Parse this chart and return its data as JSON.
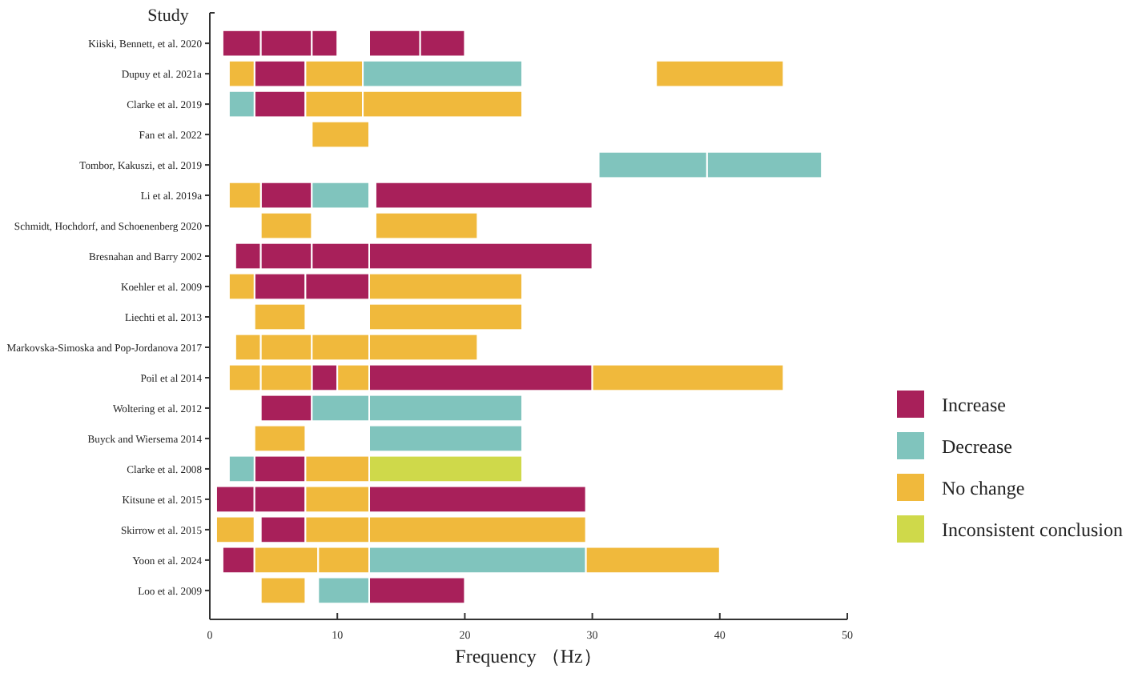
{
  "chart_data": {
    "type": "bar",
    "orientation": "horizontal",
    "ylabel": "Study",
    "xlabel": "Frequency （Hz）",
    "categories": [
      "Kiiski, Bennett, et al. 2020",
      "Dupuy et al. 2021a",
      "Clarke et al. 2019",
      "Fan et al. 2022",
      "Tombor, Kakuszi, et al. 2019",
      "Li et al. 2019a",
      "Schmidt, Hochdorf, and Schoenenberg 2020",
      "Bresnahan and Barry 2002",
      "Koehler et al. 2009",
      "Liechti et al. 2013",
      "Markovska-Simoska and Pop-Jordanova 2017",
      "Poil et al 2014",
      "Woltering et al. 2012",
      "Buyck and Wiersema 2014",
      "Clarke et al. 2008",
      "Kitsune et al. 2015",
      "Skirrow et al. 2015",
      "Yoon et al. 2024",
      "Loo et al. 2009"
    ],
    "xlim": [
      0,
      50
    ],
    "xticks": [
      0,
      10,
      20,
      30,
      40,
      50
    ],
    "legend": "right",
    "grid": false,
    "series": [
      {
        "name": "Increase",
        "color": "#a8205a",
        "base": [
          1,
          3.5,
          3.5,
          null,
          null,
          4,
          null,
          2,
          3.5,
          null,
          null,
          8,
          4,
          null,
          3.5,
          0.5,
          4,
          1,
          12.5
        ],
        "values": [
          3,
          4,
          4,
          null,
          null,
          4,
          null,
          2,
          4,
          null,
          null,
          2,
          4,
          null,
          4,
          3,
          3.5,
          2.5,
          7.5
        ]
      },
      {
        "color": "#a8205a",
        "base": [
          4,
          null,
          null,
          null,
          null,
          13,
          null,
          4,
          7.5,
          null,
          null,
          12.5,
          null,
          null,
          null,
          3.5,
          null,
          null,
          null
        ],
        "values": [
          4,
          null,
          null,
          null,
          null,
          17,
          null,
          4,
          5,
          null,
          null,
          17.5,
          null,
          null,
          null,
          4,
          null,
          null,
          null
        ]
      },
      {
        "color": "#a8205a",
        "base": [
          8,
          null,
          null,
          null,
          null,
          null,
          null,
          8,
          null,
          null,
          null,
          null,
          null,
          null,
          null,
          12.5,
          null,
          null,
          null
        ],
        "values": [
          2,
          null,
          null,
          null,
          null,
          null,
          null,
          4.5,
          null,
          null,
          null,
          null,
          null,
          null,
          null,
          17,
          null,
          null,
          null
        ]
      },
      {
        "color": "#a8205a",
        "base": [
          12.5,
          null,
          null,
          null,
          null,
          null,
          null,
          12.5,
          null,
          null,
          null,
          null,
          null,
          null,
          null,
          null,
          null,
          null,
          null
        ],
        "values": [
          4,
          null,
          null,
          null,
          null,
          null,
          null,
          17.5,
          null,
          null,
          null,
          null,
          null,
          null,
          null,
          null,
          null,
          null,
          null
        ]
      },
      {
        "color": "#a8205a",
        "base": [
          16.5,
          null,
          null,
          null,
          null,
          null,
          null,
          null,
          null,
          null,
          null,
          null,
          null,
          null,
          null,
          null,
          null,
          null,
          null
        ],
        "values": [
          3.5,
          null,
          null,
          null,
          null,
          null,
          null,
          null,
          null,
          null,
          null,
          null,
          null,
          null,
          null,
          null,
          null,
          null,
          null
        ]
      },
      {
        "name": "Decrease",
        "color": "#80c4bd",
        "base": [
          null,
          12,
          1.5,
          null,
          30.5,
          8,
          null,
          null,
          null,
          null,
          null,
          null,
          8,
          12.5,
          1.5,
          null,
          null,
          12.5,
          8.5
        ],
        "values": [
          null,
          12.5,
          2,
          null,
          8.5,
          4.5,
          null,
          null,
          null,
          null,
          null,
          null,
          4.5,
          12,
          2,
          null,
          null,
          17,
          4
        ]
      },
      {
        "color": "#80c4bd",
        "base": [
          null,
          null,
          null,
          null,
          39,
          null,
          null,
          null,
          null,
          null,
          null,
          null,
          12.5,
          null,
          null,
          null,
          null,
          null,
          null
        ],
        "values": [
          null,
          null,
          null,
          null,
          9,
          null,
          null,
          null,
          null,
          null,
          null,
          null,
          12,
          null,
          null,
          null,
          null,
          null,
          null
        ]
      },
      {
        "name": "No change",
        "color": "#f0b93c",
        "base": [
          null,
          1.5,
          7.5,
          8,
          null,
          1.5,
          4,
          null,
          1.5,
          3.5,
          2,
          1.5,
          null,
          3.5,
          7.5,
          7.5,
          0.5,
          3.5,
          4
        ],
        "values": [
          null,
          2,
          4.5,
          4.5,
          null,
          2.5,
          4,
          null,
          2,
          4,
          2,
          2.5,
          null,
          4,
          5,
          5,
          3,
          5,
          3.5
        ]
      },
      {
        "color": "#f0b93c",
        "base": [
          null,
          7.5,
          12,
          null,
          null,
          null,
          13,
          null,
          12.5,
          12.5,
          4,
          4,
          null,
          null,
          null,
          null,
          7.5,
          8.5,
          null
        ],
        "values": [
          null,
          4.5,
          12.5,
          null,
          null,
          null,
          8,
          null,
          12,
          12,
          4,
          4,
          null,
          null,
          null,
          null,
          5,
          4,
          null
        ]
      },
      {
        "color": "#f0b93c",
        "base": [
          null,
          35,
          null,
          null,
          null,
          null,
          null,
          null,
          null,
          null,
          8,
          10,
          null,
          null,
          null,
          null,
          12.5,
          29.5,
          null
        ],
        "values": [
          null,
          10,
          null,
          null,
          null,
          null,
          null,
          null,
          null,
          null,
          4.5,
          2.5,
          null,
          null,
          null,
          null,
          17,
          10.5,
          null
        ]
      },
      {
        "color": "#f0b93c",
        "base": [
          null,
          null,
          null,
          null,
          null,
          null,
          null,
          null,
          null,
          null,
          12.5,
          30,
          null,
          null,
          null,
          null,
          null,
          null,
          null
        ],
        "values": [
          null,
          null,
          null,
          null,
          null,
          null,
          null,
          null,
          null,
          null,
          8.5,
          15,
          null,
          null,
          null,
          null,
          null,
          null,
          null
        ]
      },
      {
        "name": "Inconsistent conclusion",
        "color": "#cfd94a",
        "base": [
          null,
          null,
          null,
          null,
          null,
          null,
          null,
          null,
          null,
          null,
          null,
          null,
          null,
          null,
          12.5,
          null,
          null,
          null,
          null
        ],
        "values": [
          null,
          null,
          null,
          null,
          null,
          null,
          null,
          null,
          null,
          null,
          null,
          null,
          null,
          null,
          12,
          null,
          null,
          null,
          null
        ]
      }
    ]
  }
}
